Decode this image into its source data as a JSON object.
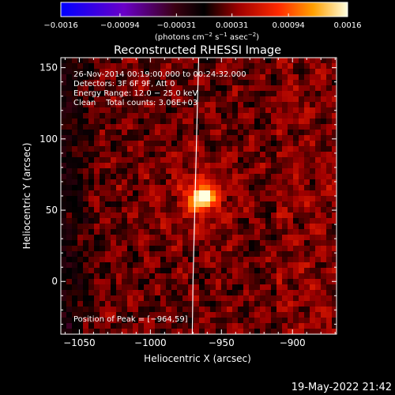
{
  "chart_data": {
    "type": "heatmap",
    "title": "Reconstructed RHESSI Image",
    "xlabel": "Heliocentric X (arcsec)",
    "ylabel": "Heliocentric Y (arcsec)",
    "xlim": [
      -1063,
      -869
    ],
    "ylim": [
      -37,
      157
    ],
    "x_ticks": [
      {
        "value": -1050,
        "label": "−1050"
      },
      {
        "value": -1000,
        "label": "−1000"
      },
      {
        "value": -950,
        "label": "−950"
      },
      {
        "value": -900,
        "label": "−900"
      }
    ],
    "y_ticks": [
      {
        "value": 0,
        "label": "0"
      },
      {
        "value": 50,
        "label": "50"
      },
      {
        "value": 100,
        "label": "100"
      },
      {
        "value": 150,
        "label": "150"
      }
    ],
    "colorbar": {
      "min": -0.0016,
      "max": 0.0016,
      "ticks": [
        {
          "value": -0.0016,
          "label": "−0.0016"
        },
        {
          "value": -0.00094,
          "label": "−0.00094"
        },
        {
          "value": -0.00031,
          "label": "−0.00031"
        },
        {
          "value": 0.00031,
          "label": "0.00031"
        },
        {
          "value": 0.00094,
          "label": "0.00094"
        },
        {
          "value": 0.0016,
          "label": "0.0016"
        }
      ],
      "unit_prefix": "(photons cm",
      "unit_mid1": " s",
      "unit_mid2": " asec",
      "unit_suffix": ")",
      "exp1": "−2",
      "exp2": "−1",
      "exp3": "−2"
    },
    "info_lines": [
      "26-Nov-2014 00:19:00.000 to 00:24:32.000",
      "Detectors: 3F 6F 9F, Att 0",
      "Energy Range: 12.0 − 25.0 keV",
      "Clean    Total counts: 3.06E+03"
    ],
    "peak_label": "Position of Peak = [−964,59]",
    "peak": {
      "x": -964,
      "y": 59
    },
    "limb_points": [
      [
        -966,
        157
      ],
      [
        -967,
        120
      ],
      [
        -968,
        80
      ],
      [
        -969,
        40
      ],
      [
        -970,
        0
      ],
      [
        -970.5,
        -37
      ]
    ],
    "footer_date": "19-May-2022 21:42",
    "colors": {
      "limb": "#ffffff",
      "text": "#ffffff",
      "background": "#000000"
    }
  }
}
